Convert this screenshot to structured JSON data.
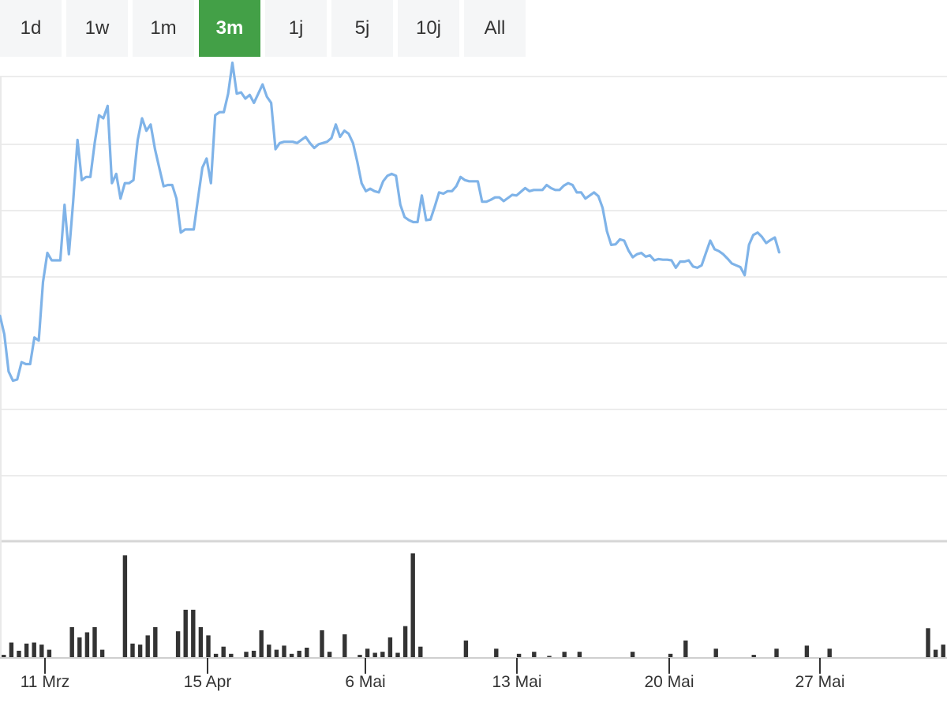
{
  "range_selector": {
    "buttons": [
      "1d",
      "1w",
      "1m",
      "3m",
      "1j",
      "5j",
      "10j",
      "All"
    ],
    "active": "3m"
  },
  "colors": {
    "line": "#7fb3e8",
    "volume": "#333333",
    "active_button": "#43a047",
    "button_bg": "#f5f6f7",
    "grid": "#e6e6e6"
  },
  "chart_data": {
    "type": "line",
    "title": "",
    "xlabel": "",
    "ylabel": "",
    "x_ticks": [
      "11 Mrz",
      "15 Apr",
      "6 Mai",
      "13 Mai",
      "20 Mai",
      "27 Mai"
    ],
    "grid": true,
    "price_index_range": [
      0,
      220
    ],
    "price_y_range": [
      0,
      6.9
    ],
    "price": [
      3.7,
      3.4,
      2.8,
      2.65,
      2.67,
      2.95,
      2.92,
      2.92,
      3.35,
      3.3,
      4.25,
      4.72,
      4.6,
      4.6,
      4.6,
      5.5,
      4.7,
      5.55,
      6.55,
      5.9,
      5.95,
      5.95,
      6.5,
      6.95,
      6.9,
      7.1,
      5.85,
      6.0,
      5.6,
      5.85,
      5.85,
      5.9,
      6.55,
      6.9,
      6.7,
      6.8,
      6.4,
      6.1,
      5.8,
      5.82,
      5.82,
      5.6,
      5.05,
      5.1,
      5.1,
      5.1,
      5.6,
      6.1,
      6.25,
      5.85,
      6.95,
      7.0,
      7.0,
      7.3,
      7.8,
      7.3,
      7.32,
      7.22,
      7.28,
      7.15,
      7.3,
      7.45,
      7.25,
      7.15,
      6.4,
      6.5,
      6.52,
      6.52,
      6.52,
      6.5,
      6.55,
      6.6,
      6.5,
      6.42,
      6.48,
      6.5,
      6.52,
      6.58,
      6.8,
      6.6,
      6.7,
      6.65,
      6.5,
      6.2,
      5.85,
      5.72,
      5.76,
      5.72,
      5.7,
      5.88,
      5.97,
      6.0,
      5.97,
      5.5,
      5.3,
      5.25,
      5.22,
      5.22,
      5.65,
      5.25,
      5.26,
      5.47,
      5.7,
      5.68,
      5.72,
      5.72,
      5.8,
      5.95,
      5.9,
      5.88,
      5.88,
      5.88,
      5.55,
      5.55,
      5.58,
      5.62,
      5.62,
      5.56,
      5.61,
      5.66,
      5.65,
      5.71,
      5.77,
      5.72,
      5.74,
      5.74,
      5.74,
      5.82,
      5.77,
      5.74,
      5.74,
      5.81,
      5.85,
      5.82,
      5.7,
      5.7,
      5.6,
      5.65,
      5.7,
      5.64,
      5.45,
      5.07,
      4.85,
      4.86,
      4.94,
      4.92,
      4.76,
      4.65,
      4.7,
      4.72,
      4.66,
      4.68,
      4.6,
      4.62,
      4.61,
      4.61,
      4.6,
      4.48,
      4.58,
      4.58,
      4.6,
      4.5,
      4.48,
      4.52,
      4.72,
      4.92,
      4.78,
      4.75,
      4.7,
      4.63,
      4.55,
      4.52,
      4.49,
      4.36,
      4.85,
      5.01,
      5.05,
      4.98,
      4.88,
      4.93,
      4.97,
      4.73
    ],
    "volume_y_range": [
      0,
      1.0
    ],
    "volume": [
      0.03,
      0.15,
      0.07,
      0.14,
      0.15,
      0.13,
      0.08,
      0.0,
      0.0,
      0.3,
      0.2,
      0.25,
      0.3,
      0.08,
      0.0,
      0.0,
      1.0,
      0.14,
      0.13,
      0.22,
      0.3,
      0.0,
      0.0,
      0.26,
      0.47,
      0.47,
      0.3,
      0.22,
      0.04,
      0.11,
      0.04,
      0.0,
      0.06,
      0.07,
      0.27,
      0.13,
      0.08,
      0.12,
      0.04,
      0.07,
      0.1,
      0.0,
      0.27,
      0.06,
      0.0,
      0.23,
      0.0,
      0.03,
      0.09,
      0.05,
      0.06,
      0.2,
      0.05,
      0.31,
      1.02,
      0.11,
      0.0,
      0.0,
      0.0,
      0.0,
      0.0,
      0.17,
      0.0,
      0.0,
      0.0,
      0.09,
      0.0,
      0.0,
      0.04,
      0.0,
      0.06,
      0.0,
      0.02,
      0.0,
      0.06,
      0.0,
      0.06,
      0.0,
      0.0,
      0.0,
      0.0,
      0.0,
      0.0,
      0.06,
      0.0,
      0.0,
      0.0,
      0.0,
      0.04,
      0.0,
      0.17,
      0.0,
      0.0,
      0.0,
      0.09,
      0.0,
      0.0,
      0.0,
      0.0,
      0.03,
      0.0,
      0.0,
      0.09,
      0.0,
      0.0,
      0.0,
      0.12,
      0.0,
      0.0,
      0.09,
      0.0,
      0.0,
      0.0,
      0.0,
      0.0,
      0.0,
      0.0,
      0.0,
      0.0,
      0.0,
      0.0,
      0.0,
      0.29,
      0.08,
      0.13
    ]
  }
}
